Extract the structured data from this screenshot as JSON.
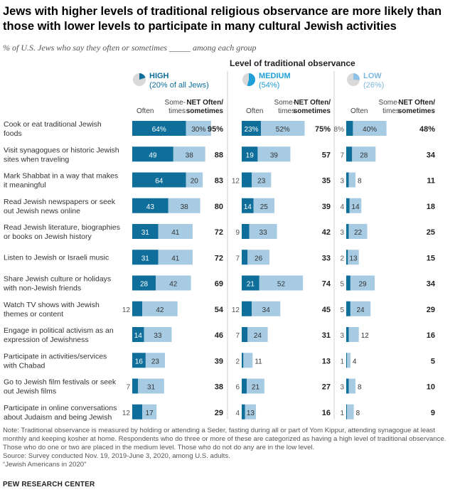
{
  "title": "Jews with higher levels of traditional religious observance are more likely than those with lower levels to participate in many cultural Jewish activities",
  "subtitle": "% of U.S. Jews who say they often or sometimes _____ among each group",
  "level_title": "Level of traditional observance",
  "colors": {
    "often": "#0f6f9a",
    "sometimes": "#a6cbe3",
    "high_icon": "#0f6f9a",
    "medium_icon": "#1e9fd6",
    "low_icon": "#8cc2e6"
  },
  "column_headers": {
    "often": "Often",
    "sometimes_line1": "Some-",
    "sometimes_line2": "times",
    "net_line1": "NET Often/",
    "net_line2": "sometimes"
  },
  "chart_data": {
    "type": "bar",
    "stacked": true,
    "groups": [
      {
        "name": "HIGH",
        "sub": "(20% of all Jews)",
        "icon_share": 20
      },
      {
        "name": "MEDIUM",
        "sub": "(54%)",
        "icon_share": 54
      },
      {
        "name": "LOW",
        "sub": "(26%)",
        "icon_share": 26
      }
    ],
    "categories": [
      "Cook or eat traditional Jewish foods",
      "Visit synagogues or historic Jewish sites when traveling",
      "Mark Shabbat in a way that makes it meaningful",
      "Read Jewish newspapers or seek out Jewish news online",
      "Read Jewish literature, biographies or books on Jewish history",
      "Listen to Jewish or Israeli music",
      "Share Jewish culture or holidays with non-Jewish friends",
      "Watch TV shows with Jewish themes or content",
      "Engage in political activism as an expression of Jewishness",
      "Participate in activities/services with Chabad",
      "Go to Jewish film festivals or seek out Jewish films",
      "Participate in online conversations about Judaism and being Jewish"
    ],
    "category_lines": [
      [
        "Cook or eat traditional Jewish",
        "foods"
      ],
      [
        "Visit synagogues or historic Jewish",
        "sites when traveling"
      ],
      [
        "Mark Shabbat in a way that makes",
        "it meaningful"
      ],
      [
        "Read Jewish newspapers or seek",
        "out Jewish news online"
      ],
      [
        "Read Jewish literature, biographies",
        "or books on Jewish history"
      ],
      [
        "Listen to Jewish or Israeli music"
      ],
      [
        "Share Jewish culture or holidays",
        "with non-Jewish friends"
      ],
      [
        "Watch TV shows with Jewish",
        "themes or content"
      ],
      [
        "Engage in political activism as an",
        "expression of Jewishness"
      ],
      [
        "Participate in activities/services",
        "with Chabad"
      ],
      [
        "Go to Jewish film festivals or seek",
        "out Jewish films"
      ],
      [
        "Participate in online conversations",
        "about Judaism and being Jewish"
      ]
    ],
    "series": [
      {
        "group": "HIGH",
        "often": [
          64,
          49,
          64,
          43,
          31,
          31,
          28,
          12,
          14,
          16,
          7,
          12
        ],
        "sometimes": [
          30,
          38,
          20,
          38,
          41,
          41,
          42,
          42,
          33,
          23,
          31,
          17
        ],
        "net": [
          95,
          88,
          83,
          80,
          72,
          72,
          69,
          54,
          46,
          39,
          38,
          29
        ]
      },
      {
        "group": "MEDIUM",
        "often": [
          23,
          19,
          12,
          14,
          9,
          7,
          21,
          12,
          7,
          2,
          6,
          4
        ],
        "sometimes": [
          52,
          39,
          23,
          25,
          33,
          26,
          52,
          34,
          24,
          11,
          21,
          13
        ],
        "net": [
          75,
          57,
          35,
          39,
          42,
          33,
          74,
          45,
          31,
          13,
          27,
          16
        ]
      },
      {
        "group": "LOW",
        "often": [
          8,
          7,
          3,
          4,
          3,
          2,
          5,
          5,
          3,
          1,
          3,
          1
        ],
        "sometimes": [
          40,
          28,
          8,
          14,
          22,
          13,
          29,
          24,
          12,
          4,
          8,
          8
        ],
        "net": [
          48,
          34,
          11,
          18,
          25,
          15,
          34,
          29,
          16,
          5,
          10,
          9
        ]
      }
    ],
    "first_value_suffix": "%"
  },
  "notes": [
    "Note: Traditional observance is measured by holding or attending a Seder, fasting during all or part of Yom Kippur, attending synagogue at least monthly and keeping kosher at home. Respondents who do three or more of these are categorized as having a high level of traditional observance. Those who do one or two are placed in the medium level. Those who do not do any are in the low level.",
    "Source: Survey conducted Nov. 19, 2019-June 3, 2020, among U.S. adults.",
    "“Jewish Americans in 2020”"
  ],
  "source_label": "PEW RESEARCH CENTER"
}
